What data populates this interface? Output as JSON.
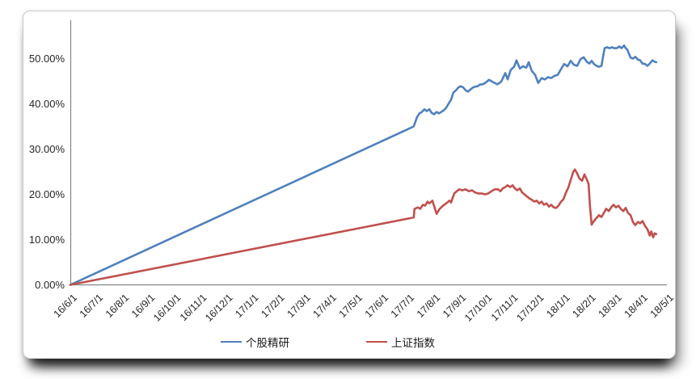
{
  "page": {
    "background_color": "#ffffff",
    "panel_border_color": "#c9c9c9"
  },
  "axis_style": {
    "axis_line_color": "#858585",
    "tick_text_color": "#262626"
  },
  "chart_data": {
    "type": "line",
    "title": "",
    "grid": "off",
    "legend_position": "bottom-center",
    "x_unit": "months_since_16/6/1",
    "x_axis": {
      "min": 0,
      "max": 23,
      "tick_count": 24,
      "label_rotation_deg": -45
    },
    "y_axis": {
      "min": 0,
      "max": 58.5,
      "tick_step": 10,
      "format": "percent"
    },
    "x_tick_labels": [
      "16/6/1",
      "16/7/1",
      "16/8/1",
      "16/9/1",
      "16/10/1",
      "16/11/1",
      "16/12/1",
      "17/1/1",
      "17/2/1",
      "17/3/1",
      "17/4/1",
      "17/5/1",
      "17/6/1",
      "17/7/1",
      "17/8/1",
      "17/9/1",
      "17/10/1",
      "17/11/1",
      "17/12/1",
      "18/1/1",
      "18/2/1",
      "18/3/1",
      "18/4/1",
      "18/5/1"
    ],
    "y_tick_labels": [
      "0.00%",
      "10.00%",
      "20.00%",
      "30.00%",
      "40.00%",
      "50.00%"
    ],
    "series": [
      {
        "name": "个股精研",
        "color": "#4F81BD",
        "points": [
          [
            0,
            0
          ],
          [
            13.24,
            35.0
          ],
          [
            13.37,
            37.1
          ],
          [
            13.46,
            37.9
          ],
          [
            13.55,
            38.2
          ],
          [
            13.65,
            38.8
          ],
          [
            13.74,
            38.4
          ],
          [
            13.84,
            38.8
          ],
          [
            13.93,
            38.0
          ],
          [
            14.02,
            37.7
          ],
          [
            14.12,
            38.2
          ],
          [
            14.21,
            37.9
          ],
          [
            14.3,
            38.2
          ],
          [
            14.4,
            38.6
          ],
          [
            14.49,
            39.1
          ],
          [
            14.58,
            40.0
          ],
          [
            14.68,
            40.9
          ],
          [
            14.77,
            42.5
          ],
          [
            14.87,
            43.0
          ],
          [
            14.96,
            43.6
          ],
          [
            15.05,
            43.9
          ],
          [
            15.15,
            43.6
          ],
          [
            15.24,
            43.0
          ],
          [
            15.33,
            42.7
          ],
          [
            15.43,
            43.2
          ],
          [
            15.52,
            43.6
          ],
          [
            15.61,
            43.8
          ],
          [
            15.71,
            43.9
          ],
          [
            15.8,
            44.3
          ],
          [
            15.89,
            44.3
          ],
          [
            15.99,
            44.6
          ],
          [
            16.14,
            45.3
          ],
          [
            16.3,
            44.8
          ],
          [
            16.46,
            44.3
          ],
          [
            16.61,
            44.9
          ],
          [
            16.77,
            46.8
          ],
          [
            16.86,
            45.4
          ],
          [
            16.98,
            47.5
          ],
          [
            17.11,
            48.2
          ],
          [
            17.2,
            49.6
          ],
          [
            17.33,
            47.8
          ],
          [
            17.45,
            48.3
          ],
          [
            17.58,
            48.0
          ],
          [
            17.67,
            49.2
          ],
          [
            17.79,
            47.3
          ],
          [
            17.92,
            46.4
          ],
          [
            18.04,
            44.6
          ],
          [
            18.17,
            45.7
          ],
          [
            18.29,
            45.4
          ],
          [
            18.42,
            45.9
          ],
          [
            18.54,
            45.7
          ],
          [
            18.67,
            46.2
          ],
          [
            18.79,
            46.4
          ],
          [
            18.92,
            47.7
          ],
          [
            19.04,
            48.8
          ],
          [
            19.17,
            48.3
          ],
          [
            19.29,
            49.5
          ],
          [
            19.42,
            48.6
          ],
          [
            19.54,
            48.4
          ],
          [
            19.67,
            49.9
          ],
          [
            19.79,
            50.3
          ],
          [
            19.91,
            49.3
          ],
          [
            20.01,
            48.9
          ],
          [
            20.1,
            49.5
          ],
          [
            20.19,
            48.8
          ],
          [
            20.29,
            48.4
          ],
          [
            20.38,
            48.2
          ],
          [
            20.48,
            48.4
          ],
          [
            20.54,
            50.5
          ],
          [
            20.6,
            52.3
          ],
          [
            20.69,
            52.5
          ],
          [
            20.79,
            52.3
          ],
          [
            20.88,
            52.5
          ],
          [
            20.97,
            52.3
          ],
          [
            21.07,
            52.3
          ],
          [
            21.16,
            52.7
          ],
          [
            21.25,
            52.3
          ],
          [
            21.35,
            52.9
          ],
          [
            21.41,
            52.3
          ],
          [
            21.47,
            52.0
          ],
          [
            21.6,
            50.2
          ],
          [
            21.69,
            50.0
          ],
          [
            21.78,
            50.4
          ],
          [
            21.88,
            49.8
          ],
          [
            21.97,
            49.6
          ],
          [
            22.06,
            48.9
          ],
          [
            22.16,
            48.8
          ],
          [
            22.25,
            48.4
          ],
          [
            22.34,
            48.9
          ],
          [
            22.44,
            49.6
          ],
          [
            22.53,
            49.3
          ],
          [
            22.59,
            49.2
          ]
        ]
      },
      {
        "name": "上证指数",
        "color": "#C0504D",
        "points": [
          [
            0,
            0
          ],
          [
            13.24,
            14.9
          ],
          [
            13.27,
            16.8
          ],
          [
            13.4,
            17.1
          ],
          [
            13.49,
            16.8
          ],
          [
            13.59,
            17.7
          ],
          [
            13.68,
            17.5
          ],
          [
            13.77,
            18.4
          ],
          [
            13.84,
            18.0
          ],
          [
            13.96,
            18.6
          ],
          [
            14.12,
            15.7
          ],
          [
            14.24,
            16.8
          ],
          [
            14.37,
            17.5
          ],
          [
            14.49,
            18.0
          ],
          [
            14.62,
            18.6
          ],
          [
            14.68,
            18.2
          ],
          [
            14.8,
            20.2
          ],
          [
            14.9,
            20.7
          ],
          [
            14.99,
            21.1
          ],
          [
            15.11,
            20.9
          ],
          [
            15.24,
            21.1
          ],
          [
            15.36,
            20.7
          ],
          [
            15.49,
            20.9
          ],
          [
            15.61,
            20.4
          ],
          [
            15.74,
            20.2
          ],
          [
            15.86,
            20.2
          ],
          [
            15.99,
            20.0
          ],
          [
            16.11,
            20.2
          ],
          [
            16.24,
            20.7
          ],
          [
            16.36,
            21.1
          ],
          [
            16.49,
            21.1
          ],
          [
            16.58,
            20.7
          ],
          [
            16.67,
            21.3
          ],
          [
            16.77,
            21.6
          ],
          [
            16.86,
            22.0
          ],
          [
            16.95,
            21.6
          ],
          [
            17.05,
            22.0
          ],
          [
            17.14,
            21.3
          ],
          [
            17.23,
            20.9
          ],
          [
            17.33,
            21.3
          ],
          [
            17.42,
            20.4
          ],
          [
            17.51,
            20.0
          ],
          [
            17.61,
            19.5
          ],
          [
            17.7,
            19.1
          ],
          [
            17.79,
            18.8
          ],
          [
            17.89,
            18.4
          ],
          [
            17.98,
            18.6
          ],
          [
            18.08,
            18.0
          ],
          [
            18.17,
            18.4
          ],
          [
            18.26,
            17.7
          ],
          [
            18.36,
            18.0
          ],
          [
            18.45,
            17.3
          ],
          [
            18.54,
            17.7
          ],
          [
            18.64,
            17.1
          ],
          [
            18.73,
            17.0
          ],
          [
            18.82,
            17.5
          ],
          [
            18.92,
            18.4
          ],
          [
            19.01,
            18.9
          ],
          [
            19.1,
            20.3
          ],
          [
            19.2,
            21.5
          ],
          [
            19.29,
            23.2
          ],
          [
            19.39,
            25.0
          ],
          [
            19.45,
            25.5
          ],
          [
            19.54,
            24.6
          ],
          [
            19.63,
            23.5
          ],
          [
            19.73,
            23.0
          ],
          [
            19.82,
            24.4
          ],
          [
            19.91,
            23.3
          ],
          [
            19.98,
            22.3
          ],
          [
            20.04,
            17.0
          ],
          [
            20.1,
            13.3
          ],
          [
            20.19,
            14.1
          ],
          [
            20.29,
            14.8
          ],
          [
            20.38,
            15.4
          ],
          [
            20.48,
            15.0
          ],
          [
            20.57,
            15.9
          ],
          [
            20.66,
            16.8
          ],
          [
            20.76,
            16.3
          ],
          [
            20.85,
            17.1
          ],
          [
            20.94,
            17.7
          ],
          [
            21.04,
            17.1
          ],
          [
            21.13,
            17.5
          ],
          [
            21.22,
            16.8
          ],
          [
            21.32,
            16.3
          ],
          [
            21.41,
            17.0
          ],
          [
            21.5,
            15.9
          ],
          [
            21.6,
            15.4
          ],
          [
            21.69,
            13.9
          ],
          [
            21.78,
            13.2
          ],
          [
            21.88,
            13.9
          ],
          [
            21.97,
            13.6
          ],
          [
            22.06,
            14.1
          ],
          [
            22.16,
            13.0
          ],
          [
            22.25,
            12.3
          ],
          [
            22.34,
            10.9
          ],
          [
            22.4,
            11.8
          ],
          [
            22.47,
            10.5
          ],
          [
            22.53,
            11.4
          ],
          [
            22.59,
            11.2
          ]
        ]
      }
    ]
  }
}
